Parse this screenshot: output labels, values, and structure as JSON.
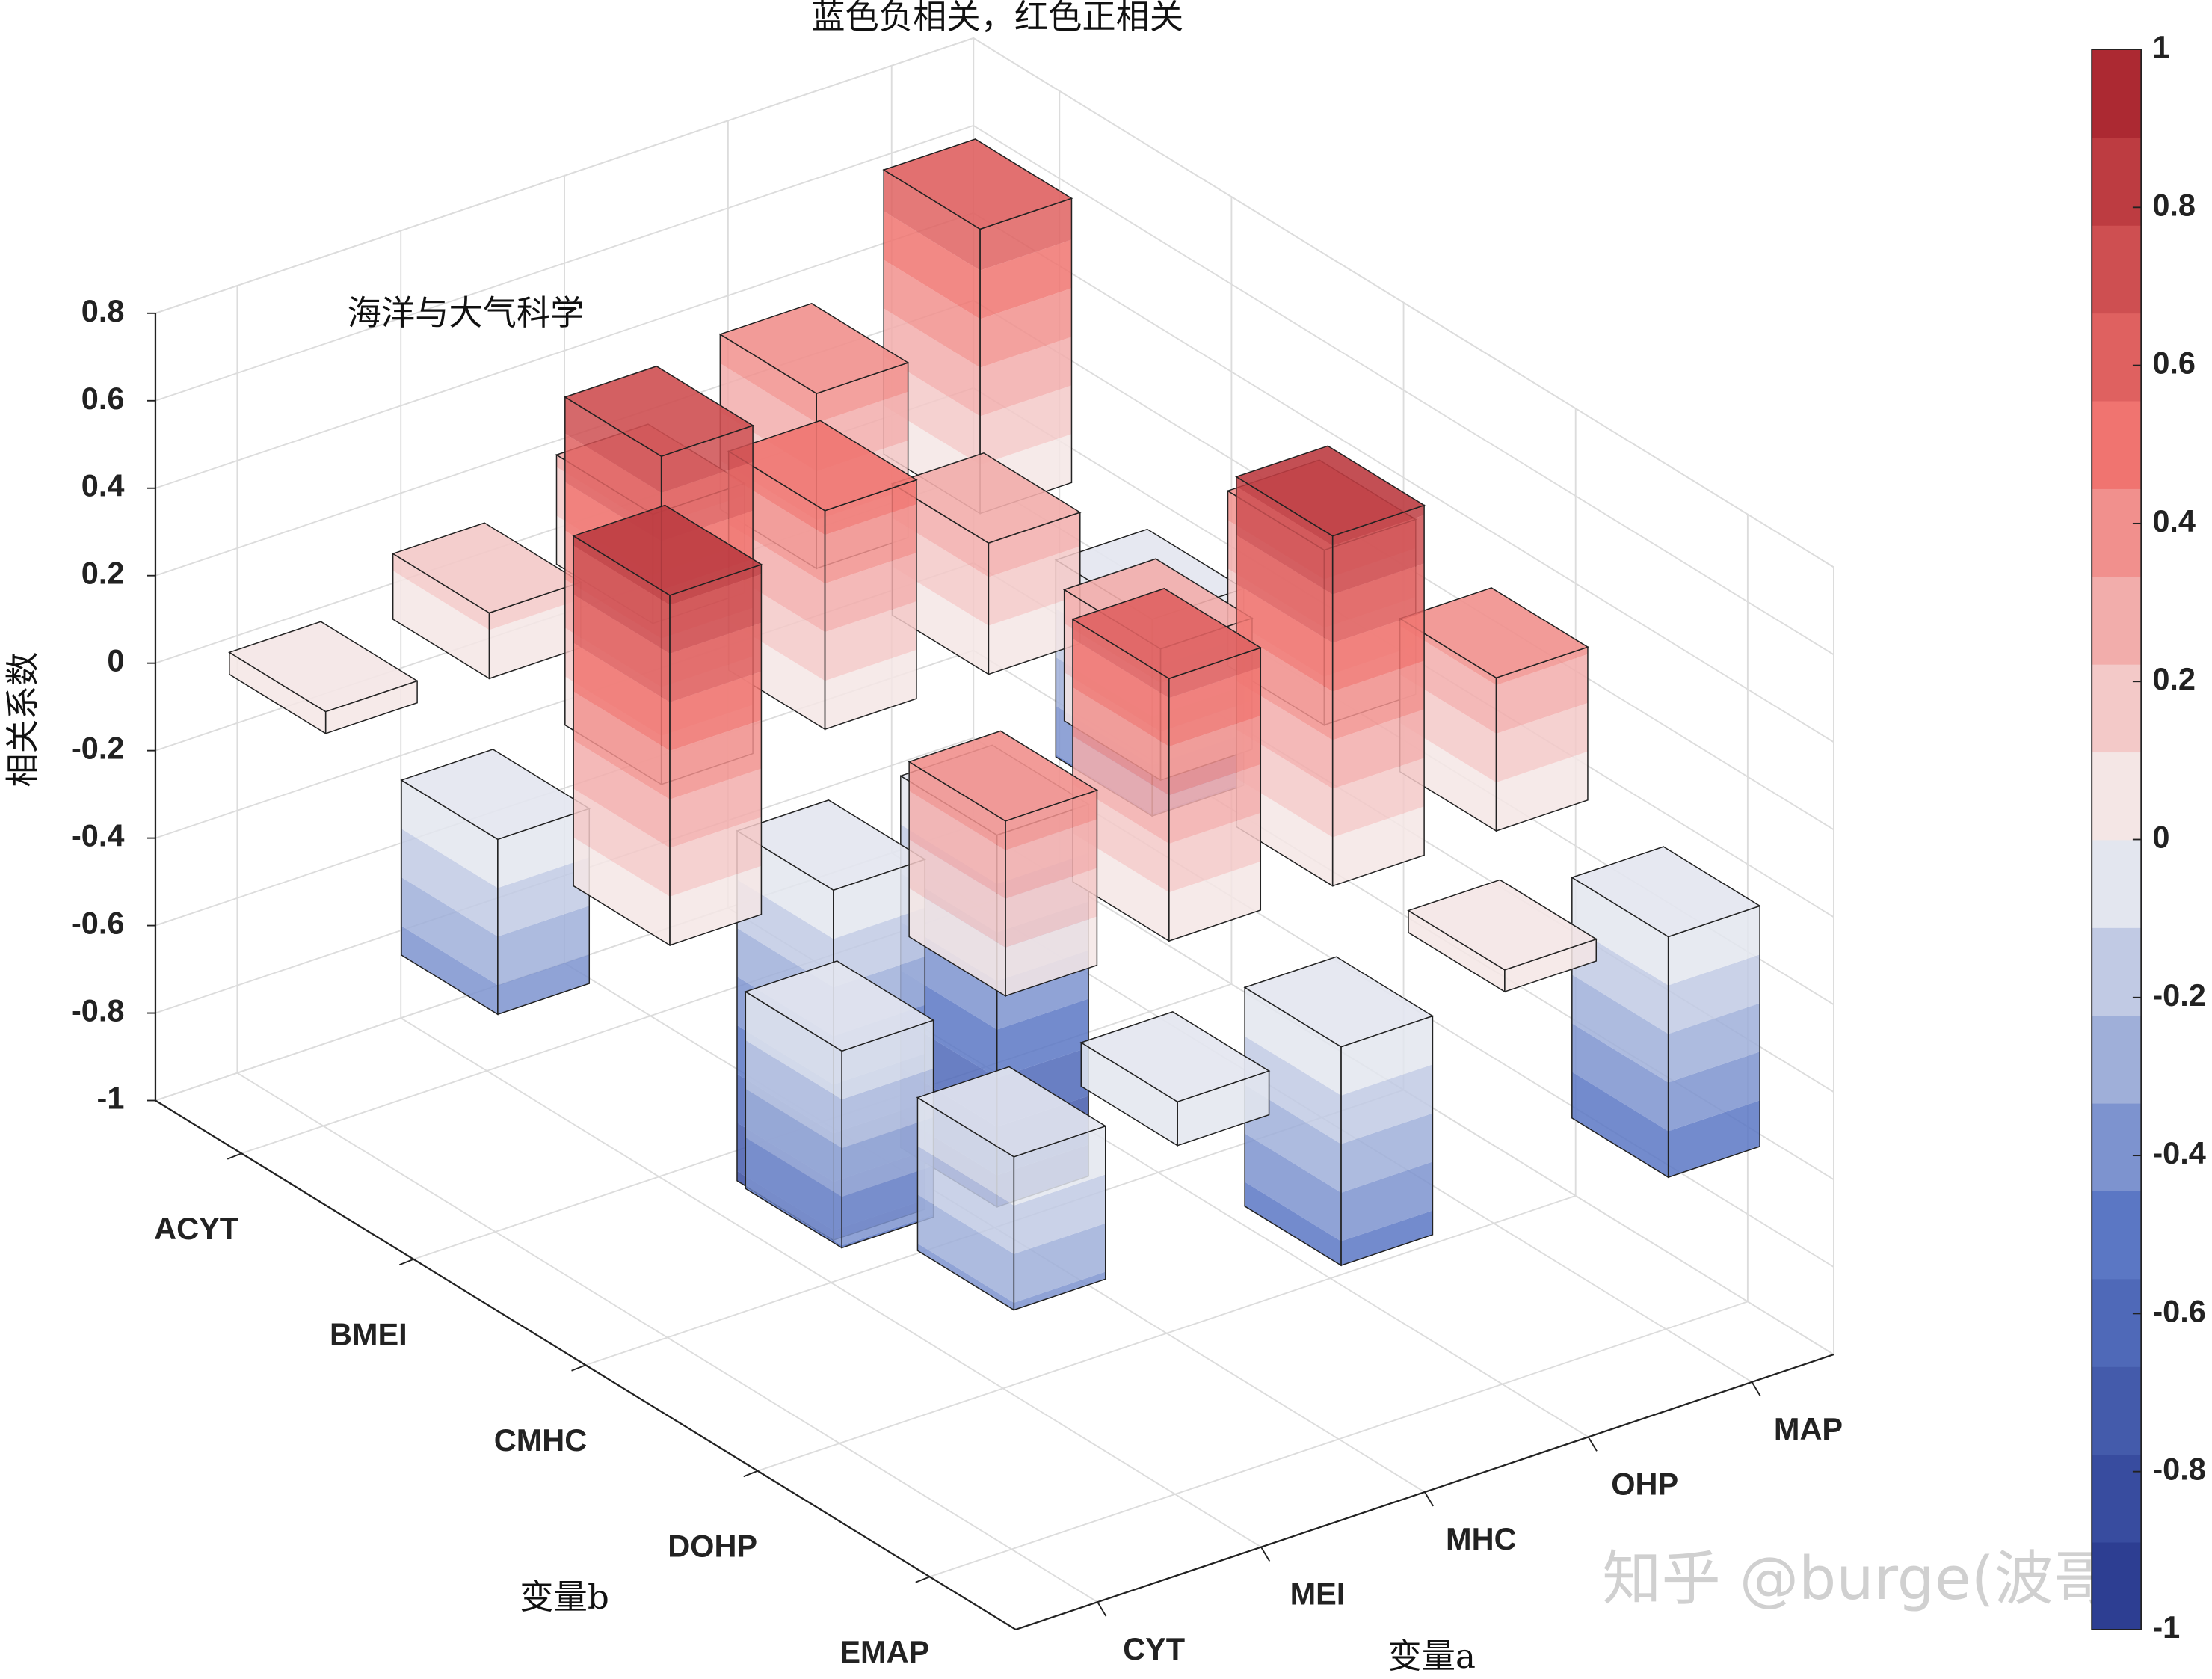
{
  "chart_data": {
    "type": "bar3",
    "title": "蓝色负相关，红色正相关",
    "annotation": "海洋与大气科学",
    "watermark": "知乎 @burge(波哥)",
    "xlabel": "变量a",
    "ylabel": "变量b",
    "zlabel": "相关系数",
    "x_categories": [
      "CYT",
      "MEI",
      "MHC",
      "OHP",
      "MAP"
    ],
    "y_categories": [
      "ACYT",
      "BMEI",
      "CMHC",
      "DOHP",
      "EMAP"
    ],
    "values": [
      [
        0.05,
        0.15,
        0.25,
        0.4,
        0.65
      ],
      [
        -0.4,
        0.75,
        0.5,
        0.3,
        -0.45
      ],
      [
        0.8,
        -0.8,
        -0.85,
        0.3,
        0.4
      ],
      [
        -0.45,
        0.4,
        0.6,
        0.8,
        0.35
      ],
      [
        -0.35,
        -0.1,
        -0.5,
        0.05,
        -0.55
      ]
    ],
    "zlim": [
      -1,
      0.8
    ],
    "zticks": [
      -1,
      -0.8,
      -0.6,
      -0.4,
      -0.2,
      0,
      0.2,
      0.4,
      0.6,
      0.8
    ],
    "grid": true,
    "colormap": [
      "#27378c",
      "#5b77c4",
      "#f4f4f4",
      "#f07470",
      "#a3202a"
    ],
    "colorbar_levels": 18,
    "clim": [
      -1,
      1
    ],
    "colorbar_ticks": [
      -1,
      -0.8,
      -0.6,
      -0.4,
      -0.2,
      0,
      0.2,
      0.4,
      0.6,
      0.8,
      1
    ]
  }
}
